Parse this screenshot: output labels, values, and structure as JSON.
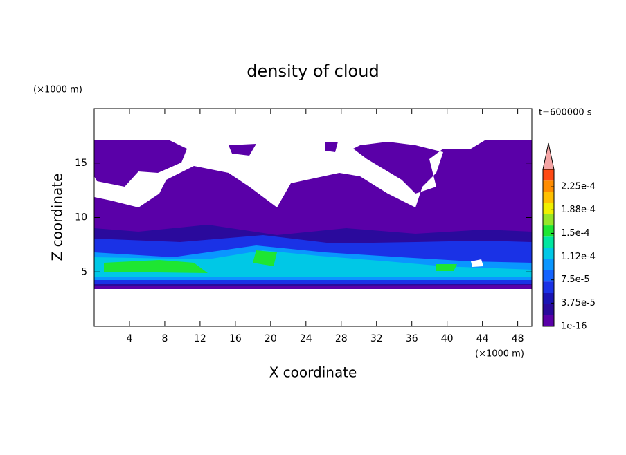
{
  "chart_data": {
    "type": "contour",
    "title": "density of cloud",
    "x_label": "X coordinate",
    "y_label": "Z coordinate",
    "x_unit": "(×1000 m)",
    "y_unit": "(×1000 m)",
    "annotation": "t=600000 s",
    "xlim": [
      0,
      49.6
    ],
    "xticks": [
      4,
      8,
      12,
      16,
      20,
      24,
      28,
      32,
      36,
      40,
      44,
      48
    ],
    "ylim": [
      0,
      20
    ],
    "yticks": [
      5,
      10,
      15
    ],
    "colorbar": {
      "lim": [
        1e-16,
        0.000253
      ],
      "ticks": [
        {
          "value": 1e-16,
          "label": "1e-16"
        },
        {
          "value": 3.75e-05,
          "label": "3.75e-5"
        },
        {
          "value": 7.5e-05,
          "label": "7.5e-5"
        },
        {
          "value": 0.000112,
          "label": "1.12e-4"
        },
        {
          "value": 0.00015,
          "label": "1.5e-4"
        },
        {
          "value": 0.000188,
          "label": "1.88e-4"
        },
        {
          "value": 0.000225,
          "label": "2.25e-4"
        }
      ],
      "colors": [
        "#5a00a8",
        "#2a0a9c",
        "#1a14b4",
        "#1a32e6",
        "#1464ff",
        "#0a96ff",
        "#00c8e6",
        "#00e6a0",
        "#1ee632",
        "#96e628",
        "#f0f000",
        "#ffc000",
        "#ff8c00",
        "#ff4a14"
      ],
      "extend_color": "#f4a4a4"
    }
  }
}
